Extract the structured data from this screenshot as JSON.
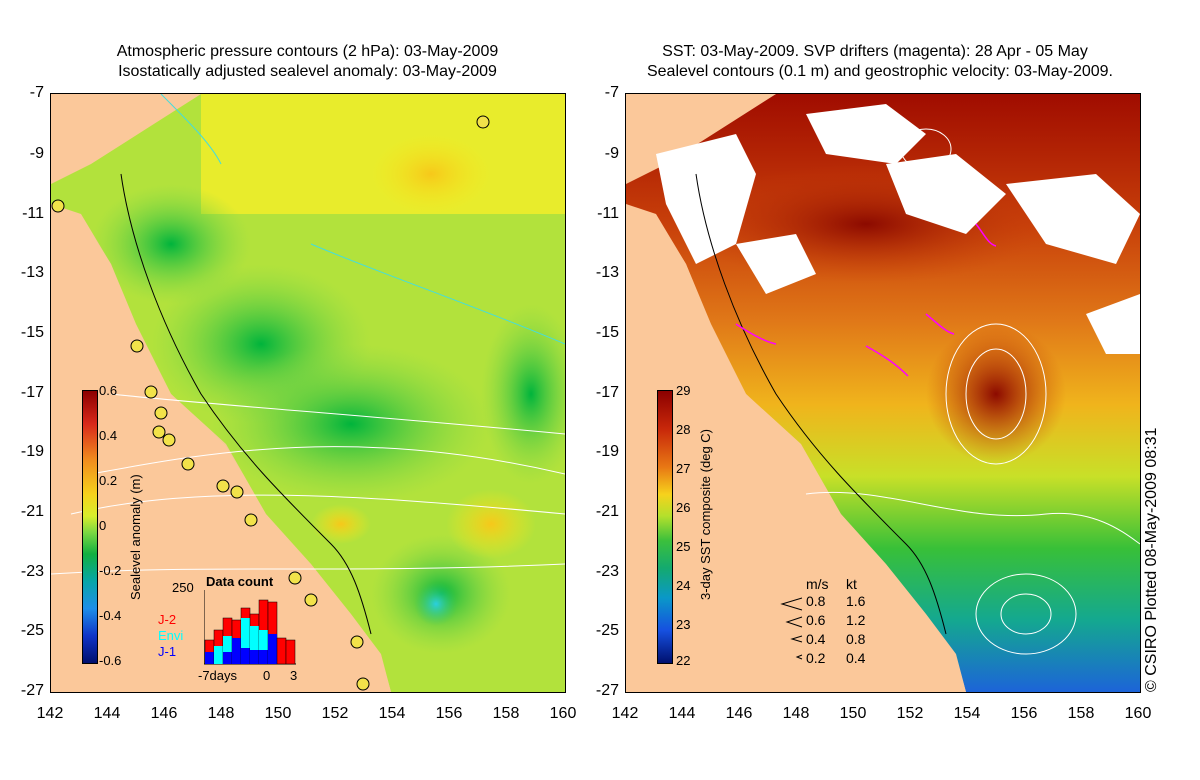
{
  "left_panel": {
    "title_line1": "Atmospheric pressure contours (2 hPa): 03-May-2009",
    "title_line2": "Isostatically adjusted sealevel anomaly: 03-May-2009",
    "colorbar": {
      "label": "Sealevel anomaly (m)",
      "ticks": [
        "0.6",
        "0.4",
        "0.2",
        "0",
        "-0.2",
        "-0.4",
        "-0.6"
      ]
    },
    "data_count": {
      "title": "Data count",
      "ymax_label": "250",
      "series": [
        "J-2",
        "Envi",
        "J-1"
      ],
      "series_colors": [
        "#ff0000",
        "#00ffff",
        "#0000ff"
      ],
      "xticks": [
        "-7days",
        "0",
        "3"
      ]
    }
  },
  "right_panel": {
    "title_line1": "SST: 03-May-2009. SVP drifters (magenta): 28 Apr - 05 May",
    "title_line2": "Sealevel contours (0.1 m) and geostrophic velocity: 03-May-2009.",
    "colorbar": {
      "label": "3-day SST composite (deg C)",
      "ticks": [
        "29",
        "28",
        "27",
        "26",
        "25",
        "24",
        "23",
        "22"
      ]
    },
    "velocity_legend": {
      "header_ms": "m/s",
      "header_kt": "kt",
      "rows": [
        {
          "ms": "0.8",
          "kt": "1.6"
        },
        {
          "ms": "0.6",
          "kt": "1.2"
        },
        {
          "ms": "0.4",
          "kt": "0.8"
        },
        {
          "ms": "0.2",
          "kt": "0.4"
        }
      ]
    },
    "credit": "© CSIRO Plotted 08-May-2009 08:31"
  },
  "axes": {
    "lat_ticks": [
      "-7",
      "-9",
      "-11",
      "-13",
      "-15",
      "-17",
      "-19",
      "-21",
      "-23",
      "-25",
      "-27"
    ],
    "lon_ticks": [
      "142",
      "144",
      "146",
      "148",
      "150",
      "152",
      "154",
      "156",
      "158",
      "160"
    ]
  },
  "colors": {
    "land": "#fbc89a",
    "sla_low": "#00b43c",
    "sla_high": "#f7e81c",
    "sst_hot": "#a00c00"
  }
}
